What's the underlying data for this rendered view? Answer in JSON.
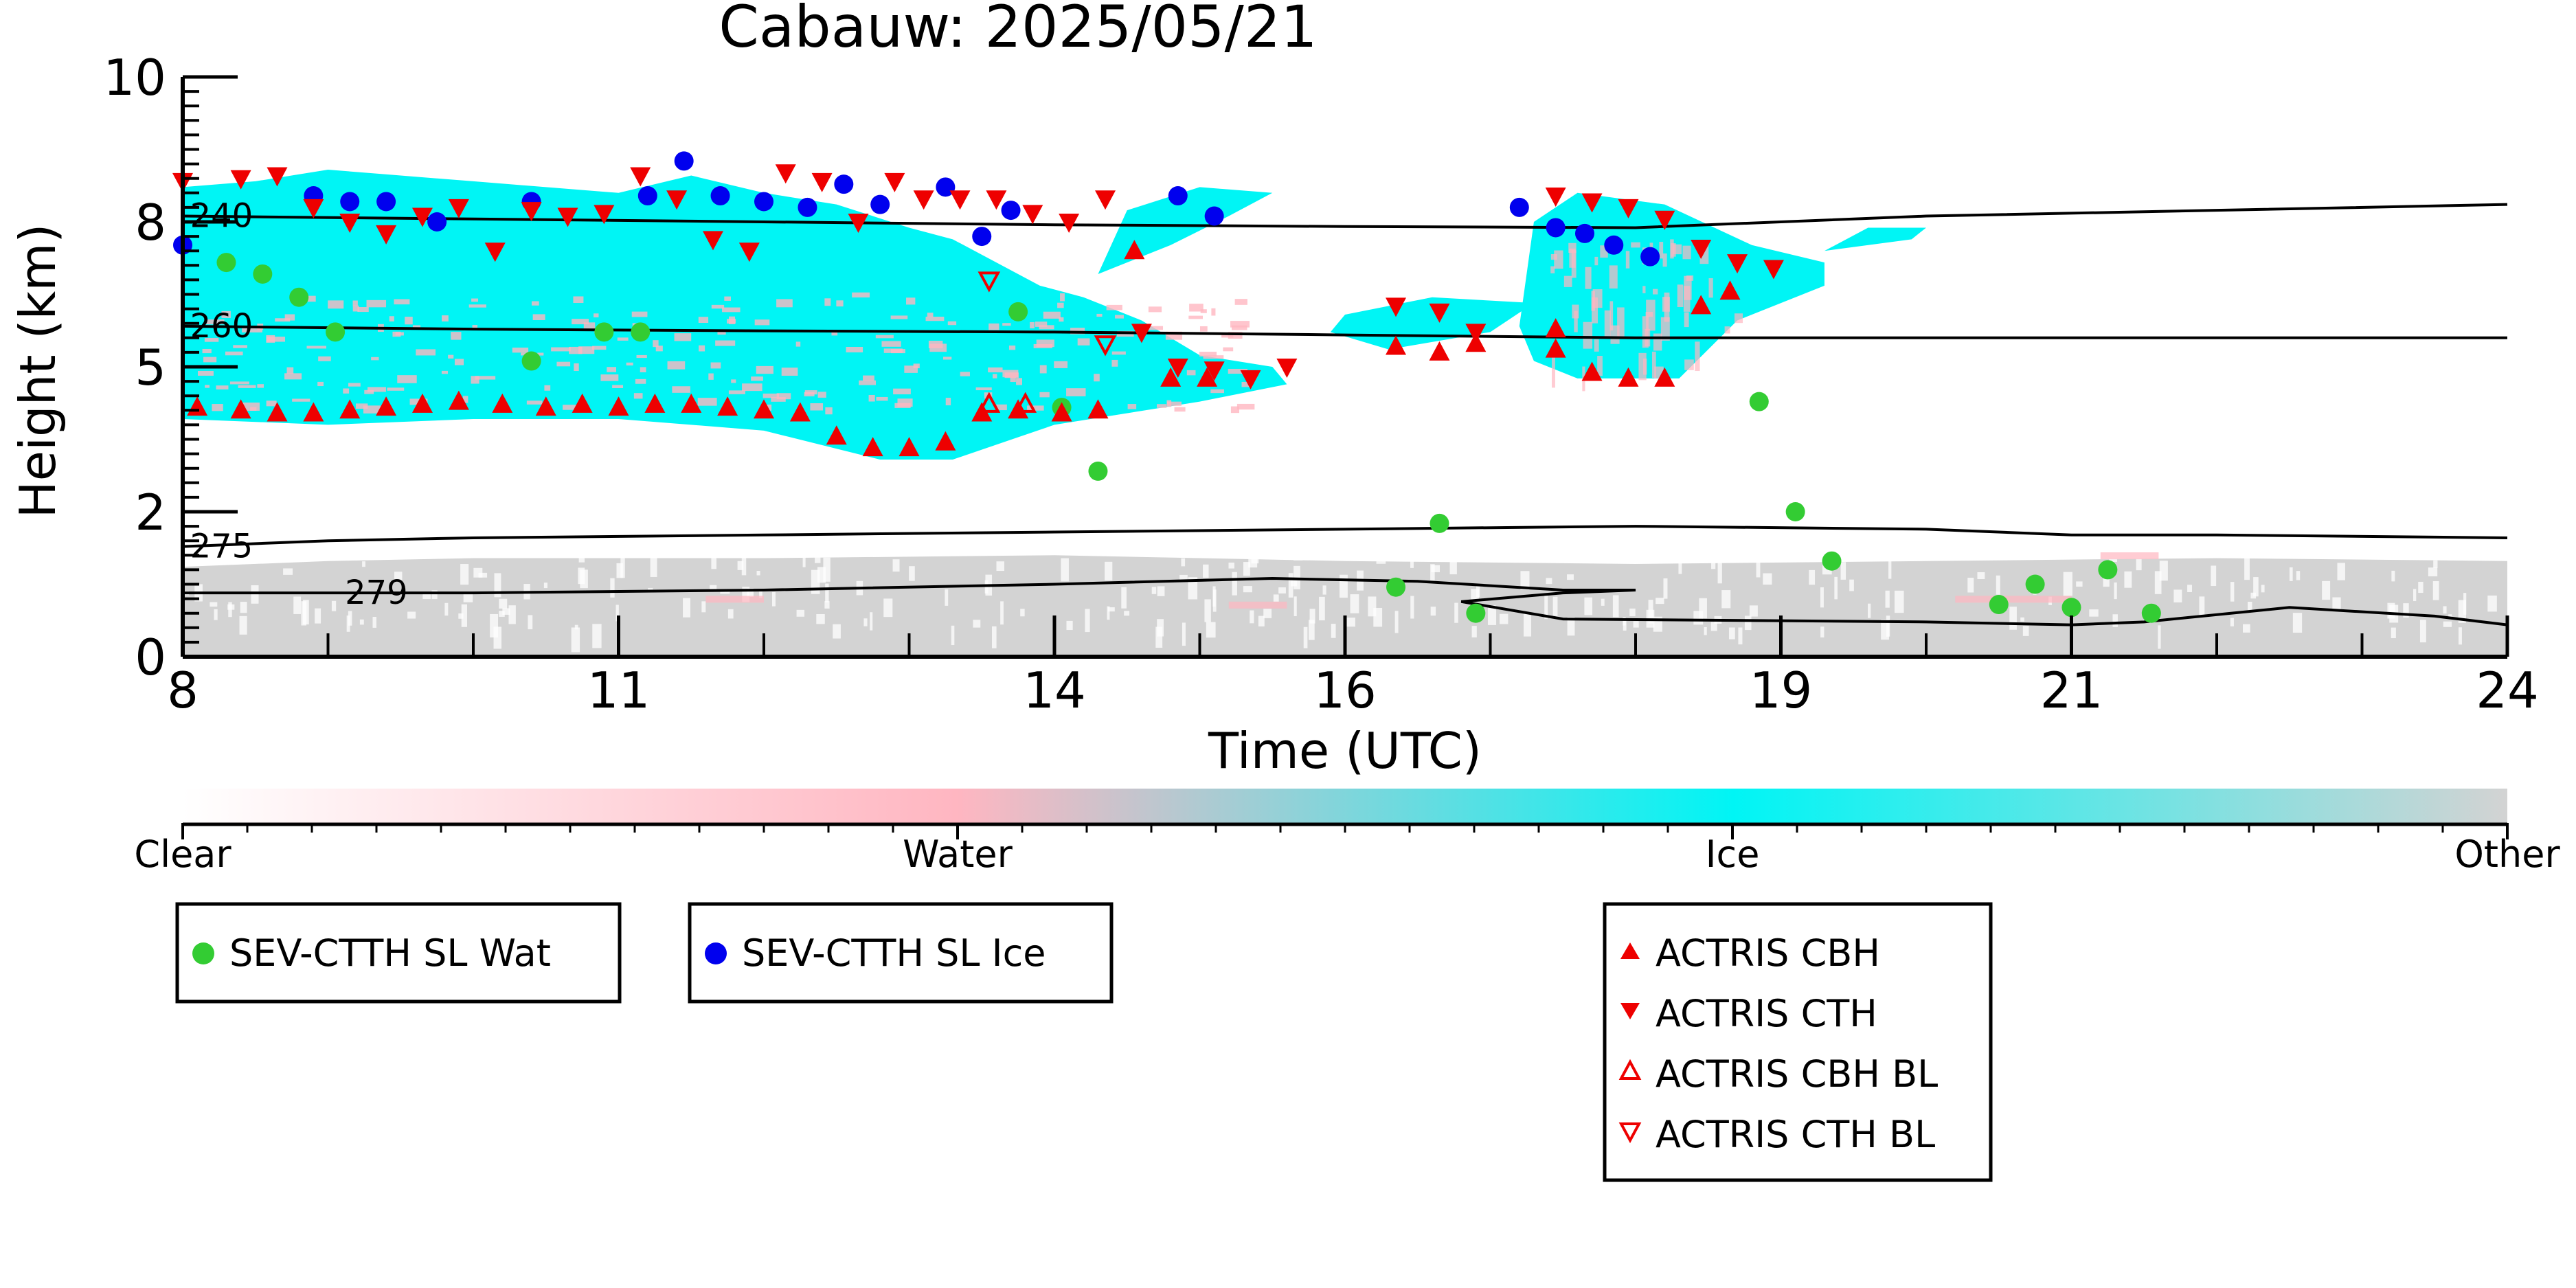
{
  "chart_data": {
    "type": "scatter",
    "title": "Cabauw: 2025/05/21",
    "xlabel": "Time (UTC)",
    "ylabel": "Height (km)",
    "xlim": [
      8,
      24
    ],
    "ylim": [
      0,
      10
    ],
    "x_ticks": [
      8,
      11,
      14,
      16,
      19,
      21,
      24
    ],
    "y_ticks": [
      {
        "value": 0,
        "label": "0"
      },
      {
        "value": 2.5,
        "label": "2"
      },
      {
        "value": 5,
        "label": "5"
      },
      {
        "value": 7.5,
        "label": "8"
      },
      {
        "value": 10,
        "label": "10"
      }
    ],
    "colorbar": {
      "labels": [
        "Clear",
        "Water",
        "Ice",
        "Other"
      ],
      "colors": [
        "#ffffff",
        "#ffb6c1",
        "#00f5f5",
        "#d3d3d3"
      ]
    },
    "contours": [
      {
        "label": "240",
        "points": [
          [
            8,
            7.6
          ],
          [
            10,
            7.55
          ],
          [
            12,
            7.5
          ],
          [
            14,
            7.45
          ],
          [
            16,
            7.42
          ],
          [
            18,
            7.4
          ],
          [
            19,
            7.5
          ],
          [
            20,
            7.6
          ],
          [
            22,
            7.7
          ],
          [
            24,
            7.8
          ]
        ]
      },
      {
        "label": "260",
        "points": [
          [
            8,
            5.7
          ],
          [
            10,
            5.65
          ],
          [
            12,
            5.62
          ],
          [
            14,
            5.6
          ],
          [
            16,
            5.55
          ],
          [
            18,
            5.5
          ],
          [
            20,
            5.5
          ],
          [
            22,
            5.5
          ],
          [
            24,
            5.5
          ]
        ]
      },
      {
        "label": "275",
        "points": [
          [
            8,
            1.9
          ],
          [
            9,
            2.0
          ],
          [
            10,
            2.05
          ],
          [
            12,
            2.1
          ],
          [
            14,
            2.15
          ],
          [
            16,
            2.2
          ],
          [
            18,
            2.25
          ],
          [
            20,
            2.2
          ],
          [
            21,
            2.1
          ],
          [
            22,
            2.1
          ],
          [
            24,
            2.05
          ]
        ]
      },
      {
        "label": "279",
        "points": [
          [
            8,
            1.1
          ],
          [
            10,
            1.1
          ],
          [
            12,
            1.15
          ],
          [
            14,
            1.25
          ],
          [
            15.5,
            1.35
          ],
          [
            16.5,
            1.3
          ],
          [
            17.5,
            1.15
          ],
          [
            18,
            1.15
          ],
          [
            17.5,
            1.1
          ],
          [
            16.8,
            0.95
          ],
          [
            17.5,
            0.65
          ],
          [
            19,
            0.62
          ],
          [
            20,
            0.6
          ],
          [
            21,
            0.55
          ],
          [
            21.5,
            0.6
          ],
          [
            22.5,
            0.85
          ],
          [
            23.5,
            0.7
          ],
          [
            24,
            0.55
          ]
        ]
      }
    ],
    "series": [
      {
        "name": "SEV-CTTH SL Wat",
        "marker": "circle",
        "color": "#33cc33",
        "points": [
          [
            8.3,
            6.8
          ],
          [
            8.55,
            6.6
          ],
          [
            8.8,
            6.2
          ],
          [
            9.05,
            5.6
          ],
          [
            10.4,
            5.1
          ],
          [
            10.9,
            5.6
          ],
          [
            11.15,
            5.6
          ],
          [
            13.75,
            5.95
          ],
          [
            14.05,
            4.3
          ],
          [
            14.3,
            3.2
          ],
          [
            16.35,
            1.2
          ],
          [
            16.65,
            2.3
          ],
          [
            16.9,
            0.75
          ],
          [
            18.85,
            4.4
          ],
          [
            19.1,
            2.5
          ],
          [
            19.35,
            1.65
          ],
          [
            20.5,
            0.9
          ],
          [
            20.75,
            1.25
          ],
          [
            21.0,
            0.85
          ],
          [
            21.25,
            1.5
          ],
          [
            21.55,
            0.75
          ]
        ]
      },
      {
        "name": "SEV-CTTH SL Ice",
        "marker": "circle",
        "color": "#0000ee",
        "points": [
          [
            8.0,
            7.1
          ],
          [
            8.9,
            7.95
          ],
          [
            9.15,
            7.85
          ],
          [
            9.4,
            7.85
          ],
          [
            9.75,
            7.5
          ],
          [
            10.4,
            7.85
          ],
          [
            11.2,
            7.95
          ],
          [
            11.45,
            8.55
          ],
          [
            11.7,
            7.95
          ],
          [
            12.0,
            7.85
          ],
          [
            12.3,
            7.75
          ],
          [
            12.55,
            8.15
          ],
          [
            12.8,
            7.8
          ],
          [
            13.25,
            8.1
          ],
          [
            13.5,
            7.25
          ],
          [
            13.7,
            7.7
          ],
          [
            14.85,
            7.95
          ],
          [
            15.1,
            7.6
          ],
          [
            17.2,
            7.75
          ],
          [
            17.45,
            7.4
          ],
          [
            17.65,
            7.3
          ],
          [
            17.85,
            7.1
          ],
          [
            18.1,
            6.9
          ]
        ]
      },
      {
        "name": "ACTRIS CBH",
        "marker": "triangle-up",
        "color": "#ee0000",
        "points": [
          [
            8.1,
            4.3
          ],
          [
            8.4,
            4.25
          ],
          [
            8.65,
            4.2
          ],
          [
            8.9,
            4.2
          ],
          [
            9.15,
            4.25
          ],
          [
            9.4,
            4.3
          ],
          [
            9.65,
            4.35
          ],
          [
            9.9,
            4.4
          ],
          [
            10.2,
            4.35
          ],
          [
            10.5,
            4.3
          ],
          [
            10.75,
            4.35
          ],
          [
            11.0,
            4.3
          ],
          [
            11.25,
            4.35
          ],
          [
            11.5,
            4.35
          ],
          [
            11.75,
            4.3
          ],
          [
            12.0,
            4.25
          ],
          [
            12.25,
            4.2
          ],
          [
            12.5,
            3.8
          ],
          [
            12.75,
            3.6
          ],
          [
            13.0,
            3.6
          ],
          [
            13.25,
            3.7
          ],
          [
            13.5,
            4.2
          ],
          [
            13.75,
            4.25
          ],
          [
            14.05,
            4.2
          ],
          [
            14.3,
            4.25
          ],
          [
            14.55,
            7.0
          ],
          [
            14.8,
            4.8
          ],
          [
            15.05,
            4.8
          ],
          [
            16.35,
            5.35
          ],
          [
            16.65,
            5.25
          ],
          [
            16.9,
            5.4
          ],
          [
            17.45,
            5.3
          ],
          [
            17.45,
            5.65
          ],
          [
            17.7,
            4.9
          ],
          [
            17.95,
            4.8
          ],
          [
            18.2,
            4.8
          ],
          [
            18.45,
            6.05
          ],
          [
            18.65,
            6.3
          ]
        ]
      },
      {
        "name": "ACTRIS CTH",
        "marker": "triangle-down",
        "color": "#ee0000",
        "points": [
          [
            8.0,
            8.2
          ],
          [
            8.4,
            8.25
          ],
          [
            8.65,
            8.3
          ],
          [
            8.9,
            7.75
          ],
          [
            9.15,
            7.5
          ],
          [
            9.4,
            7.3
          ],
          [
            9.65,
            7.6
          ],
          [
            9.9,
            7.75
          ],
          [
            10.15,
            7.0
          ],
          [
            10.4,
            7.7
          ],
          [
            10.65,
            7.6
          ],
          [
            10.9,
            7.65
          ],
          [
            11.15,
            8.3
          ],
          [
            11.4,
            7.9
          ],
          [
            11.65,
            7.2
          ],
          [
            11.9,
            7.0
          ],
          [
            12.15,
            8.35
          ],
          [
            12.4,
            8.2
          ],
          [
            12.65,
            7.5
          ],
          [
            12.9,
            8.2
          ],
          [
            13.1,
            7.9
          ],
          [
            13.35,
            7.9
          ],
          [
            13.6,
            7.9
          ],
          [
            13.85,
            7.65
          ],
          [
            14.1,
            7.5
          ],
          [
            14.35,
            7.9
          ],
          [
            14.6,
            5.6
          ],
          [
            14.85,
            5.0
          ],
          [
            15.1,
            4.95
          ],
          [
            15.35,
            4.8
          ],
          [
            15.6,
            5.0
          ],
          [
            16.35,
            6.05
          ],
          [
            16.65,
            5.95
          ],
          [
            16.9,
            5.6
          ],
          [
            17.45,
            7.95
          ],
          [
            17.7,
            7.85
          ],
          [
            17.95,
            7.75
          ],
          [
            18.2,
            7.55
          ],
          [
            18.45,
            7.05
          ],
          [
            18.7,
            6.8
          ],
          [
            18.95,
            6.7
          ]
        ]
      },
      {
        "name": "ACTRIS CBH BL",
        "marker": "triangle-up-open",
        "color": "#ee0000",
        "points": [
          [
            13.55,
            4.35
          ],
          [
            13.8,
            4.35
          ]
        ]
      },
      {
        "name": "ACTRIS CTH BL",
        "marker": "triangle-down-open",
        "color": "#ee0000",
        "points": [
          [
            13.55,
            6.5
          ],
          [
            14.35,
            5.4
          ]
        ]
      }
    ],
    "point_offsets_note": ""
  },
  "legends": {
    "box1": [
      {
        "label": "SEV-CTTH SL Wat",
        "marker": "circle",
        "color": "#33cc33"
      }
    ],
    "box2": [
      {
        "label": "SEV-CTTH SL Ice",
        "marker": "circle",
        "color": "#0000ee"
      }
    ],
    "box3": [
      {
        "label": "ACTRIS CBH",
        "marker": "triangle-up",
        "color": "#ee0000"
      },
      {
        "label": "ACTRIS CTH",
        "marker": "triangle-down",
        "color": "#ee0000"
      },
      {
        "label": "ACTRIS CBH BL",
        "marker": "triangle-up-open",
        "color": "#ee0000"
      },
      {
        "label": "ACTRIS CTH BL",
        "marker": "triangle-down-open",
        "color": "#ee0000"
      }
    ]
  }
}
